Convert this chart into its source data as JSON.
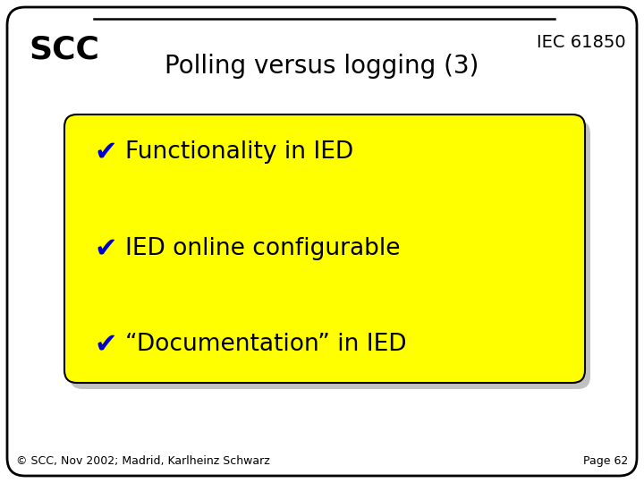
{
  "title_scc": "SCC",
  "title_iec": "IEC 61850",
  "subtitle": "Polling versus logging (3)",
  "bullet_items": [
    "Functionality in IED",
    "IED online configurable",
    "“Documentation” in IED"
  ],
  "checkmark": "✔",
  "footer_left": "© SCC, Nov 2002; Madrid, Karlheinz Schwarz",
  "footer_right": "Page 62",
  "bg_color": "#ffffff",
  "box_color": "#ffff00",
  "box_shadow_color": "#999999",
  "text_color": "#000000",
  "check_color": "#0000cc",
  "border_color": "#000000",
  "scc_fontsize": 26,
  "iec_fontsize": 14,
  "subtitle_fontsize": 20,
  "bullet_fontsize": 19,
  "footer_fontsize": 9
}
